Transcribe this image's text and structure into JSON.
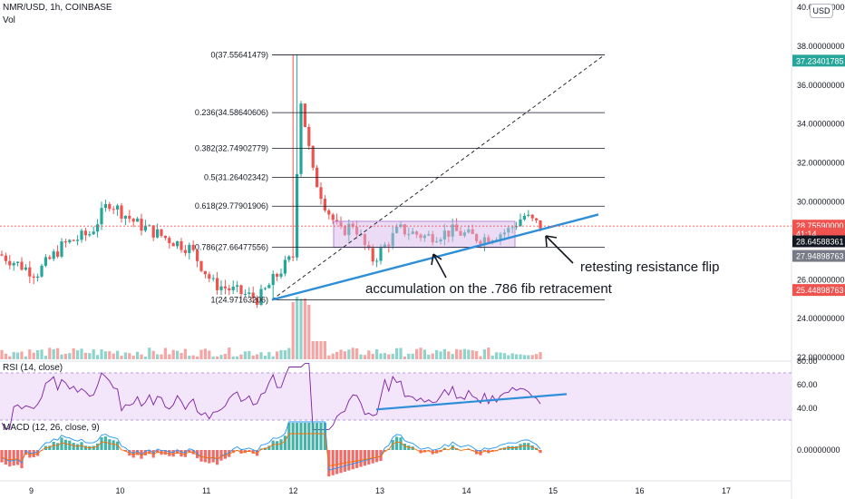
{
  "header": {
    "symbol": "NMR/USD, 1h, COINBASE",
    "volume_label": "Vol",
    "currency_button": "USD"
  },
  "rsi_label": "RSI (14, close)",
  "macd_label": "MACD (12, 26, close, 9)",
  "annotations": {
    "accumulation": "accumulation on the .786 fib retracement",
    "retest": "retesting resistance flip"
  },
  "colors": {
    "up": "#26a69a",
    "down": "#ef5350",
    "fib_line": "#131722",
    "trendline": "#2e8fd8",
    "rsi_line": "#7b1fa2",
    "rsi_band": "#f3e5fa",
    "accum_box": "#d7b7ea",
    "macd_line": "#2196f3",
    "signal_line": "#ff6d00"
  },
  "chart_data": [
    {
      "type": "candlestick",
      "title": "NMR/USD, 1h, COINBASE",
      "y_axis_ticks": [
        "40.000000000",
        "38.00000000",
        "36.00000000",
        "34.00000000",
        "32.00000000",
        "30.00000000",
        "28.0000",
        "26.00000000",
        "24.00000000",
        "22.00000000"
      ],
      "x_axis_ticks": [
        "9",
        "10",
        "11",
        "12",
        "13",
        "14",
        "15",
        "16",
        "17"
      ],
      "ylim": [
        22,
        40
      ],
      "fib_levels": [
        {
          "ratio": "0",
          "price": "37.55641479"
        },
        {
          "ratio": "0.236",
          "price": "34.58640606"
        },
        {
          "ratio": "0.382",
          "price": "32.74902779"
        },
        {
          "ratio": "0.5",
          "price": "31.26402342"
        },
        {
          "ratio": "0.618",
          "price": "29.77901906"
        },
        {
          "ratio": "0.786",
          "price": "27.66477556"
        },
        {
          "ratio": "1",
          "price": "24.97163206"
        }
      ],
      "price_labels": [
        {
          "text": "37.23401785",
          "price": 37.234,
          "color": "#26a69a"
        },
        {
          "text": "28.75590000",
          "price": 28.756,
          "color": "#ef5350"
        },
        {
          "text": "41:14",
          "price": 28.35,
          "color": "#ef5350"
        },
        {
          "text": "28.64588361",
          "price": 27.95,
          "color": "#131722"
        },
        {
          "text": "27.94898763",
          "price": 27.2,
          "color": "#787b86"
        },
        {
          "text": "25.44898763",
          "price": 25.449,
          "color": "#ef5350"
        }
      ],
      "candles_summary": {
        "start_price": 27.3,
        "low": 24.97,
        "high": 37.56,
        "last": 28.756
      }
    },
    {
      "type": "line",
      "title": "RSI (14, close)",
      "y_axis_ticks": [
        "80.00",
        "60.00",
        "40.00"
      ],
      "band": [
        30,
        70
      ]
    },
    {
      "type": "bar",
      "title": "MACD (12, 26, close, 9)",
      "y_axis_ticks": [
        "0.00000000"
      ]
    }
  ]
}
